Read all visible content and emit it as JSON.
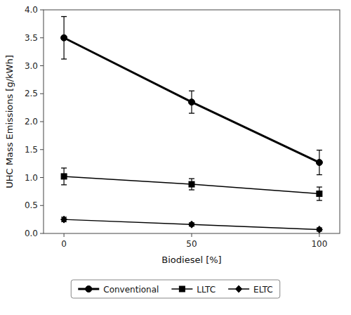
{
  "chart_data": {
    "type": "line",
    "xlabel": "Biodiesel [%]",
    "ylabel": "UHC Mass Emissions [g/kWh]",
    "x": [
      0,
      50,
      100
    ],
    "series": [
      {
        "name": "Conventional",
        "color": "#000000",
        "marker": "circle",
        "line_style": "solid",
        "values": [
          3.5,
          2.35,
          1.27
        ],
        "yerr": [
          0.38,
          0.2,
          0.22
        ]
      },
      {
        "name": "LLTC",
        "color": "#000000",
        "marker": "square",
        "line_style": "solid",
        "values": [
          1.02,
          0.88,
          0.71
        ],
        "yerr": [
          0.15,
          0.1,
          0.12
        ]
      },
      {
        "name": "ELTC",
        "color": "#000000",
        "marker": "diamond",
        "line_style": "solid",
        "values": [
          0.25,
          0.16,
          0.07
        ],
        "yerr": [
          0.04,
          0.03,
          0.03
        ]
      }
    ],
    "xlim": [
      -8,
      108
    ],
    "ylim": [
      0.0,
      4.0
    ],
    "xticks": [
      0,
      50,
      100
    ],
    "yticks": [
      {
        "value": 0.0,
        "label": "0.0"
      },
      0.5,
      {
        "value": 1.0,
        "label": "1.0"
      },
      1.5,
      {
        "value": 2.0,
        "label": "2.0"
      },
      2.5,
      {
        "value": 3.0,
        "label": "3.0"
      },
      3.5,
      {
        "value": 4.0,
        "label": "4.0"
      }
    ],
    "grid": false,
    "legend": "bottom"
  }
}
